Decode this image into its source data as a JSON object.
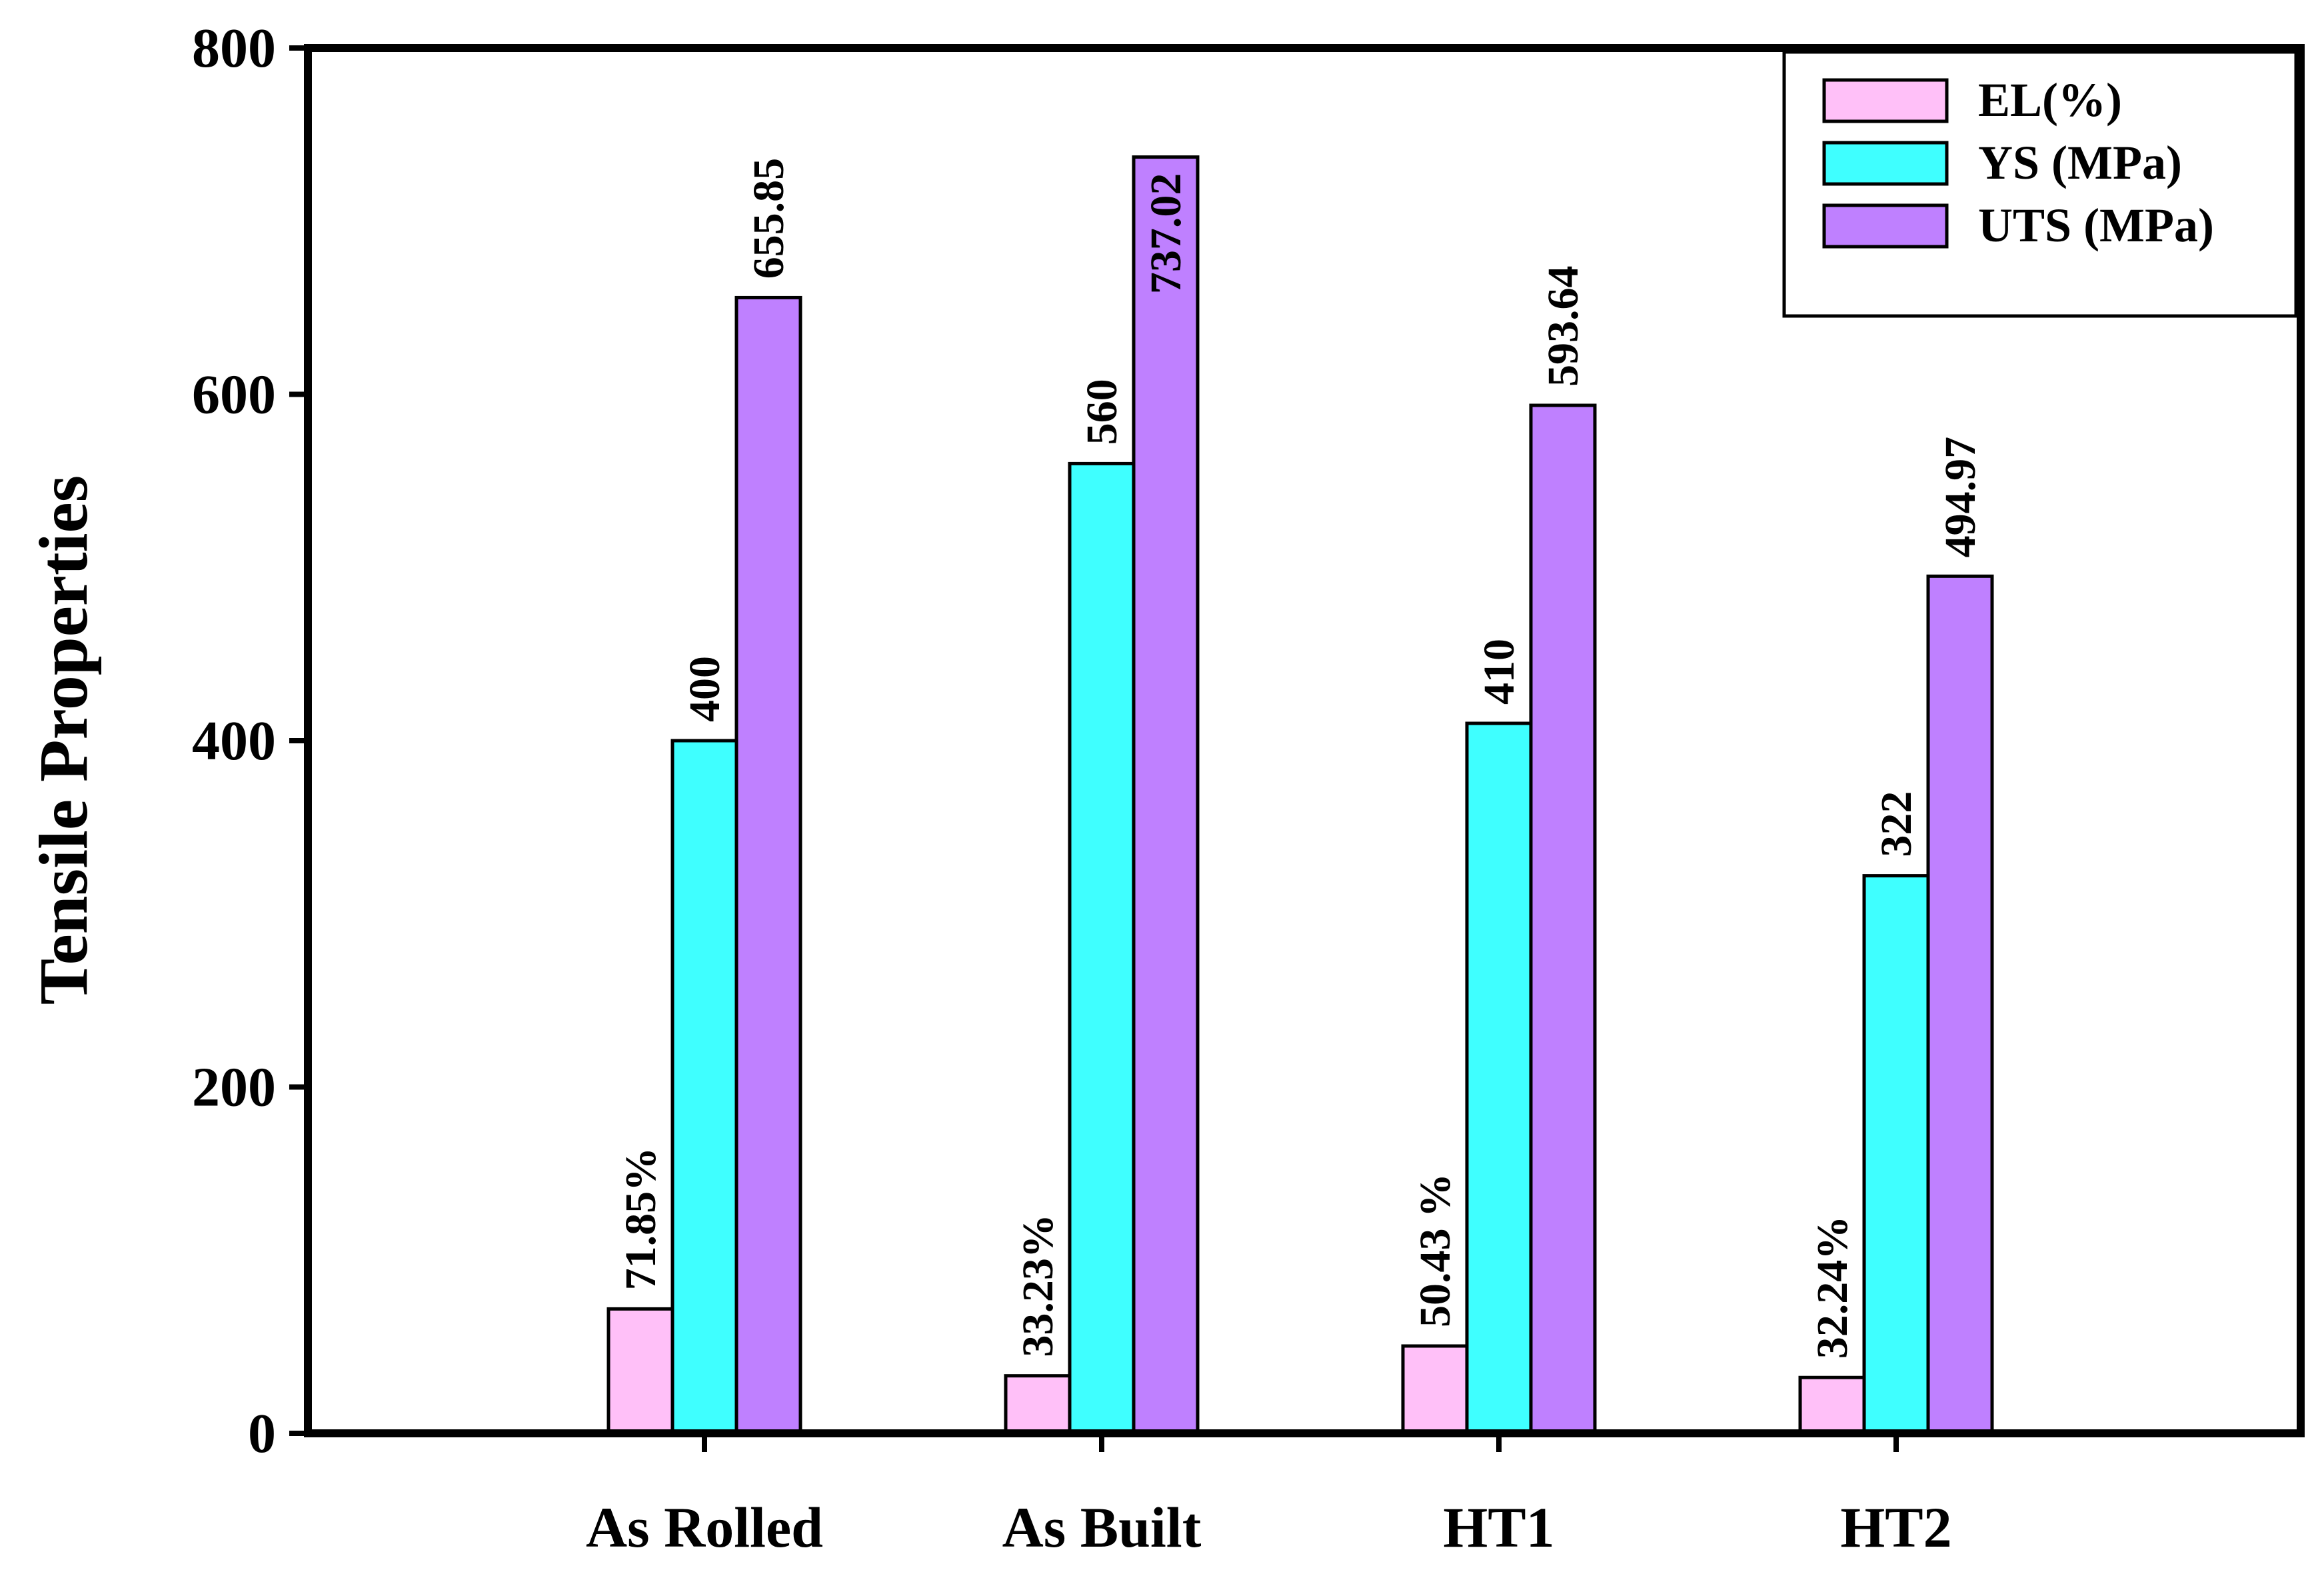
{
  "chart_data": {
    "type": "bar",
    "title": "",
    "xlabel": "",
    "ylabel": "Tensile Properties",
    "ylim": [
      0,
      800
    ],
    "yticks": [
      0,
      200,
      400,
      600,
      800
    ],
    "yticks_labels": [
      "0",
      "200",
      "400",
      "600",
      "800"
    ],
    "categories": [
      "As Rolled",
      "As Built",
      "HT1",
      "HT2"
    ],
    "legend_position": "top-right",
    "grid": false,
    "series": [
      {
        "name": "EL(%)",
        "color": "#FFC0F8",
        "values": [
          71.85,
          33.23,
          50.43,
          32.24
        ],
        "display_labels": [
          "71.85%",
          "33.23%",
          "50.43 %",
          "32.24%"
        ]
      },
      {
        "name": "YS (MPa)",
        "color": "#3FFFFF",
        "values": [
          400,
          560,
          410,
          322
        ],
        "display_labels": [
          "400",
          "560",
          "410",
          "322"
        ]
      },
      {
        "name": "UTS  (MPa)",
        "color": "#BF80FF",
        "values": [
          655.85,
          737.02,
          593.64,
          494.97
        ],
        "display_labels": [
          "655.85",
          "737.02",
          "593.64",
          "494.97"
        ]
      }
    ]
  }
}
